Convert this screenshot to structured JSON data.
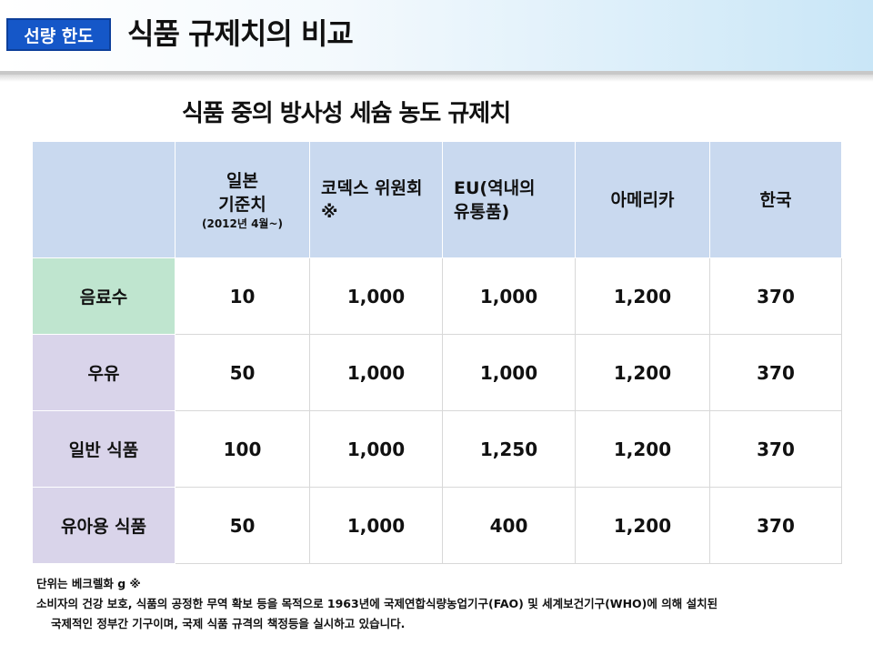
{
  "header": {
    "badge": "선량 한도",
    "title": "식품 규제치의 비교"
  },
  "subtitle": "식품 중의 방사성 세슘 농도 규제치",
  "table": {
    "columns": [
      {
        "line1": "일본",
        "line2": "기준치",
        "note": "(2012년 4월~)"
      },
      {
        "line1": "코덱스 위원회",
        "line2": "※"
      },
      {
        "line1": "EU(역내의",
        "line2": "유통품)"
      },
      {
        "line1": "아메리카"
      },
      {
        "line1": "한국"
      }
    ],
    "rows": [
      {
        "label": "음료수",
        "values": [
          "10",
          "1,000",
          "1,000",
          "1,200",
          "370"
        ]
      },
      {
        "label": "우유",
        "values": [
          "50",
          "1,000",
          "1,000",
          "1,200",
          "370"
        ]
      },
      {
        "label": "일반 식품",
        "values": [
          "100",
          "1,000",
          "1,250",
          "1,200",
          "370"
        ]
      },
      {
        "label": "유아용 식품",
        "values": [
          "50",
          "1,000",
          "400",
          "1,200",
          "370"
        ]
      }
    ]
  },
  "footnotes": {
    "unit": "단위는 베크렐화 g ※",
    "line1": "소비자의 건강 보호, 식품의 공정한 무역 확보 등을 목적으로 1963년에 국제연합식량농업기구(FAO) 및 세계보건기구(WHO)에 의해 설치된",
    "line2": "국제적인 정부간 기구이며, 국제 식품 규격의 책정등을 실시하고 있습니다."
  },
  "colors": {
    "badge": "#1557c8",
    "header_row": "#c9d9ef",
    "row_head_green": "#bfe5cf",
    "row_head_purple": "#d9d4ea"
  }
}
